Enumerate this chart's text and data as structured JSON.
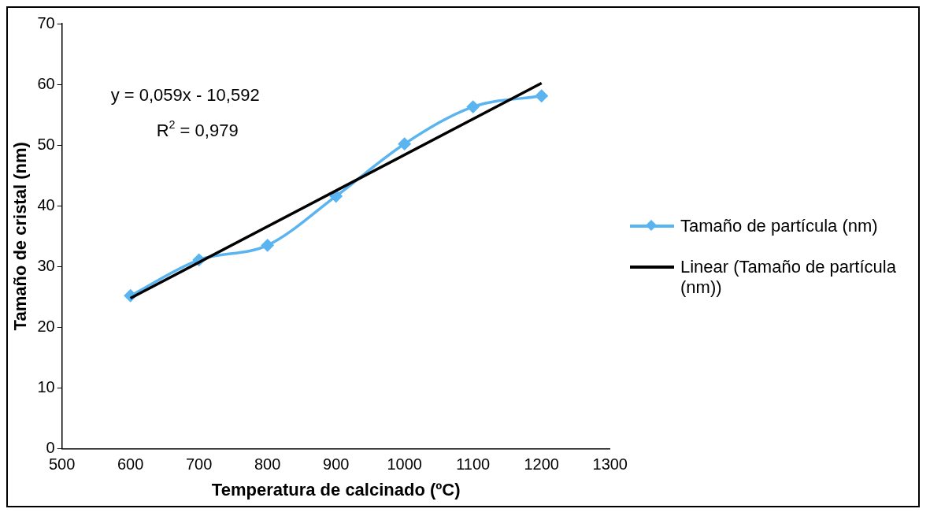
{
  "chart_data": {
    "type": "line",
    "xlabel": "Temperatura de calcinado (ºC)",
    "ylabel": "Tamaño de cristal (nm)",
    "x": [
      600,
      700,
      800,
      900,
      1000,
      1100,
      1200
    ],
    "series": [
      {
        "name": "Tamaño de partícula (nm)",
        "color": "#5ab4f0",
        "values": [
          25.2,
          31.1,
          33.5,
          41.6,
          50.2,
          56.3,
          58.1
        ],
        "marker": "diamond"
      },
      {
        "name": "Linear (Tamaño de partícula (nm))",
        "type": "line",
        "color": "#000000",
        "x": [
          600,
          1200
        ],
        "values": [
          24.8,
          60.2
        ],
        "marker": "none"
      }
    ],
    "xlim": [
      500,
      1300
    ],
    "xticks": [
      500,
      600,
      700,
      800,
      900,
      1000,
      1100,
      1200,
      1300
    ],
    "ylim": [
      0,
      70
    ],
    "yticks": [
      0,
      10,
      20,
      30,
      40,
      50,
      60,
      70
    ],
    "grid": false,
    "legend": "right",
    "annotations": [
      "y = 0,059x - 10,592",
      "R$^{2}$ = 0,979"
    ]
  }
}
